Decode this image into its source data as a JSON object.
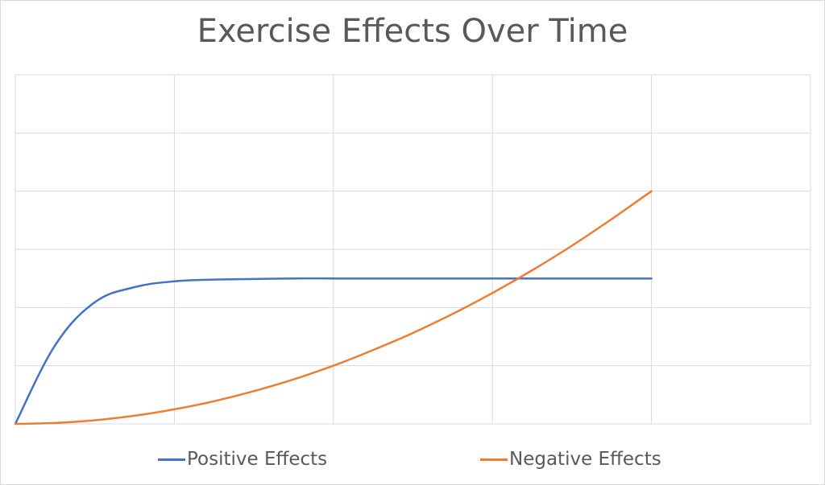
{
  "chart_data": {
    "type": "line",
    "title": "Exercise Effects Over Time",
    "xlabel": "",
    "ylabel": "",
    "x": [
      0,
      0.25,
      0.5,
      0.75,
      1,
      1.25,
      1.5,
      1.75,
      2,
      2.25,
      2.5,
      2.75,
      3,
      3.25,
      3.5,
      3.75,
      4
    ],
    "xlim": [
      0,
      5
    ],
    "ylim": [
      0,
      6
    ],
    "grid": true,
    "legend_position": "bottom",
    "series": [
      {
        "name": "Positive Effects",
        "color": "#4472C4",
        "values": [
          0,
          1.35,
          2.09,
          2.35,
          2.45,
          2.48,
          2.49,
          2.5,
          2.5,
          2.5,
          2.5,
          2.5,
          2.5,
          2.5,
          2.5,
          2.5,
          2.5
        ]
      },
      {
        "name": "Negative Effects",
        "color": "#ED7D31",
        "values": [
          0,
          0.015,
          0.0625,
          0.14,
          0.25,
          0.39,
          0.5625,
          0.765,
          1.0,
          1.27,
          1.5625,
          1.89,
          2.25,
          2.64,
          3.0625,
          3.52,
          4.0
        ]
      }
    ]
  }
}
